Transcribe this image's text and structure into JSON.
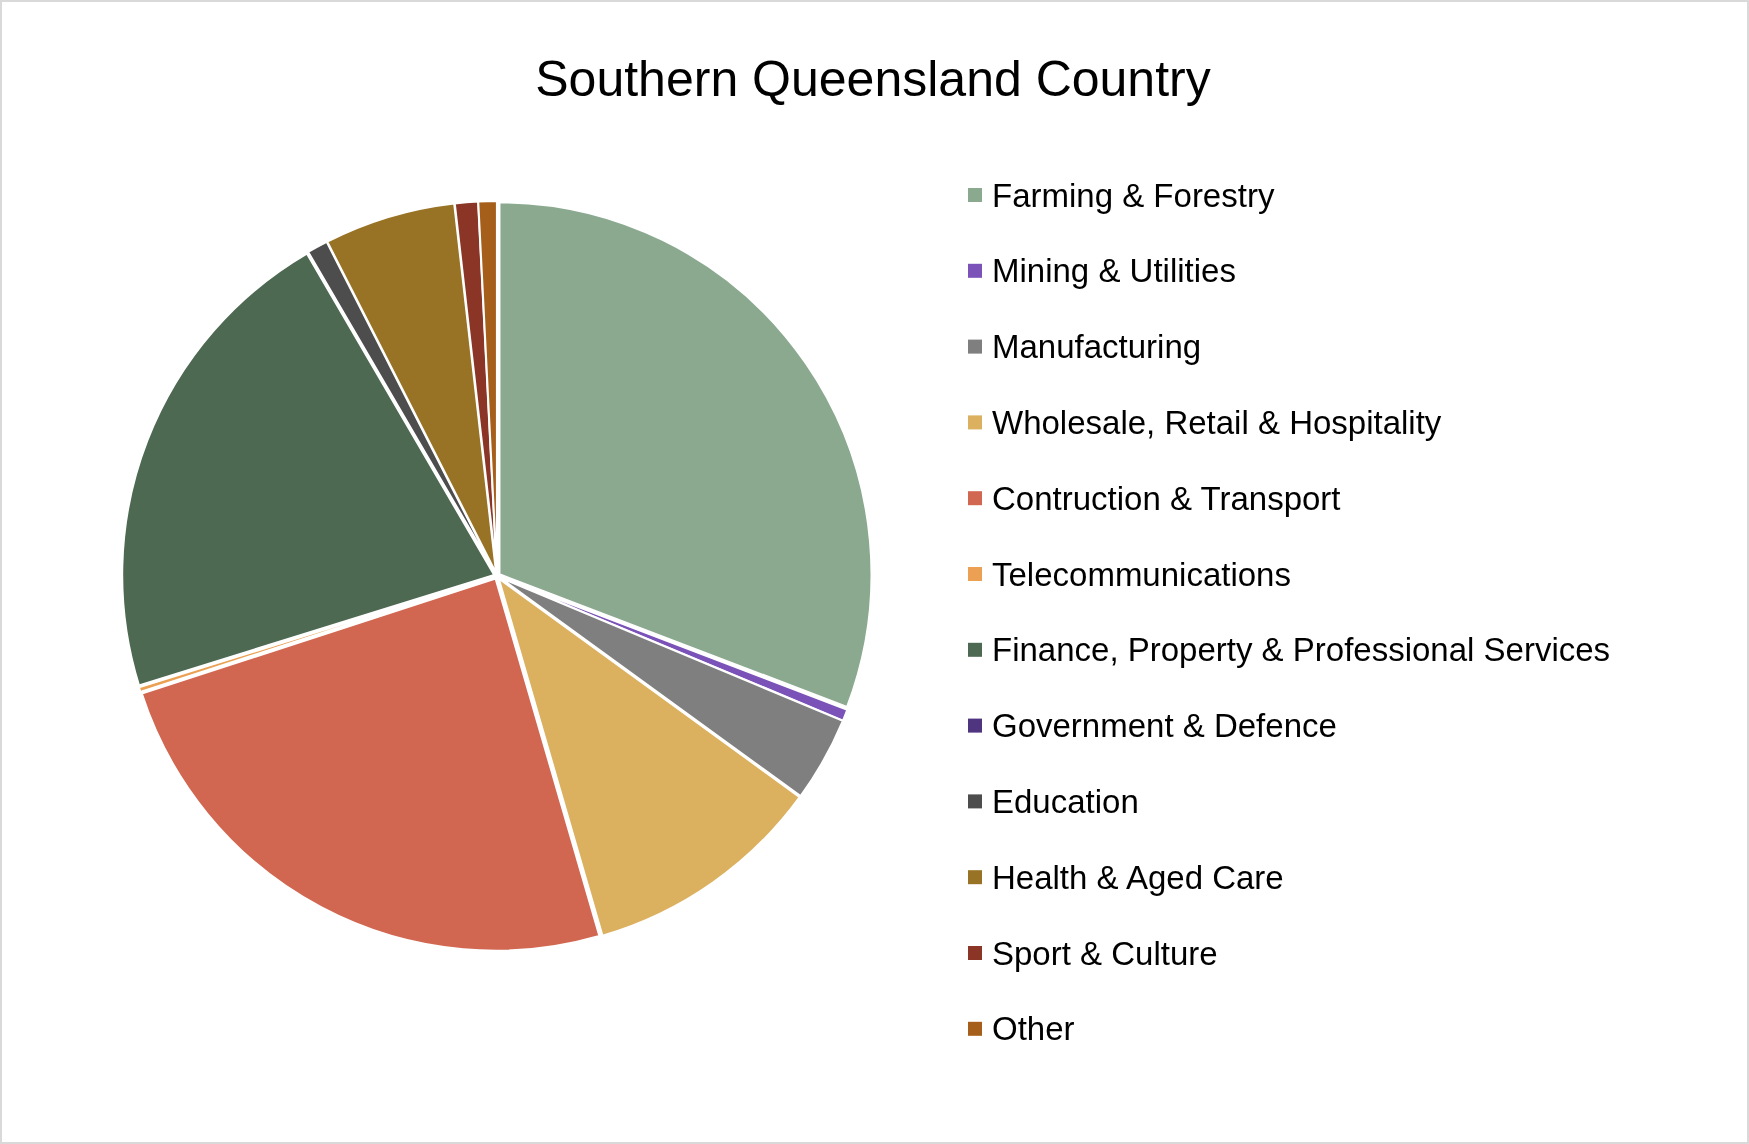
{
  "chart_data": {
    "type": "pie",
    "title": "Southern Queensland Country",
    "categories": [
      "Farming & Forestry",
      "Mining & Utilities",
      "Manufacturing",
      "Wholesale, Retail & Hospitality",
      "Contruction & Transport",
      "Telecommunications",
      "Finance, Property & Professional Services",
      "Government & Defence",
      "Education",
      "Health & Aged Care",
      "Sport & Culture",
      "Other"
    ],
    "values": [
      30.8,
      0.5,
      3.7,
      10.5,
      24.5,
      0.2,
      21.4,
      0,
      0.9,
      5.7,
      1.0,
      0.8
    ],
    "colors": [
      "#8aa98f",
      "#7b52b8",
      "#7f7f7f",
      "#dbb05f",
      "#d26751",
      "#eba053",
      "#4e6951",
      "#4f3480",
      "#4d4d4d",
      "#997325",
      "#8a3526",
      "#a65f1a"
    ],
    "legend": "right"
  }
}
